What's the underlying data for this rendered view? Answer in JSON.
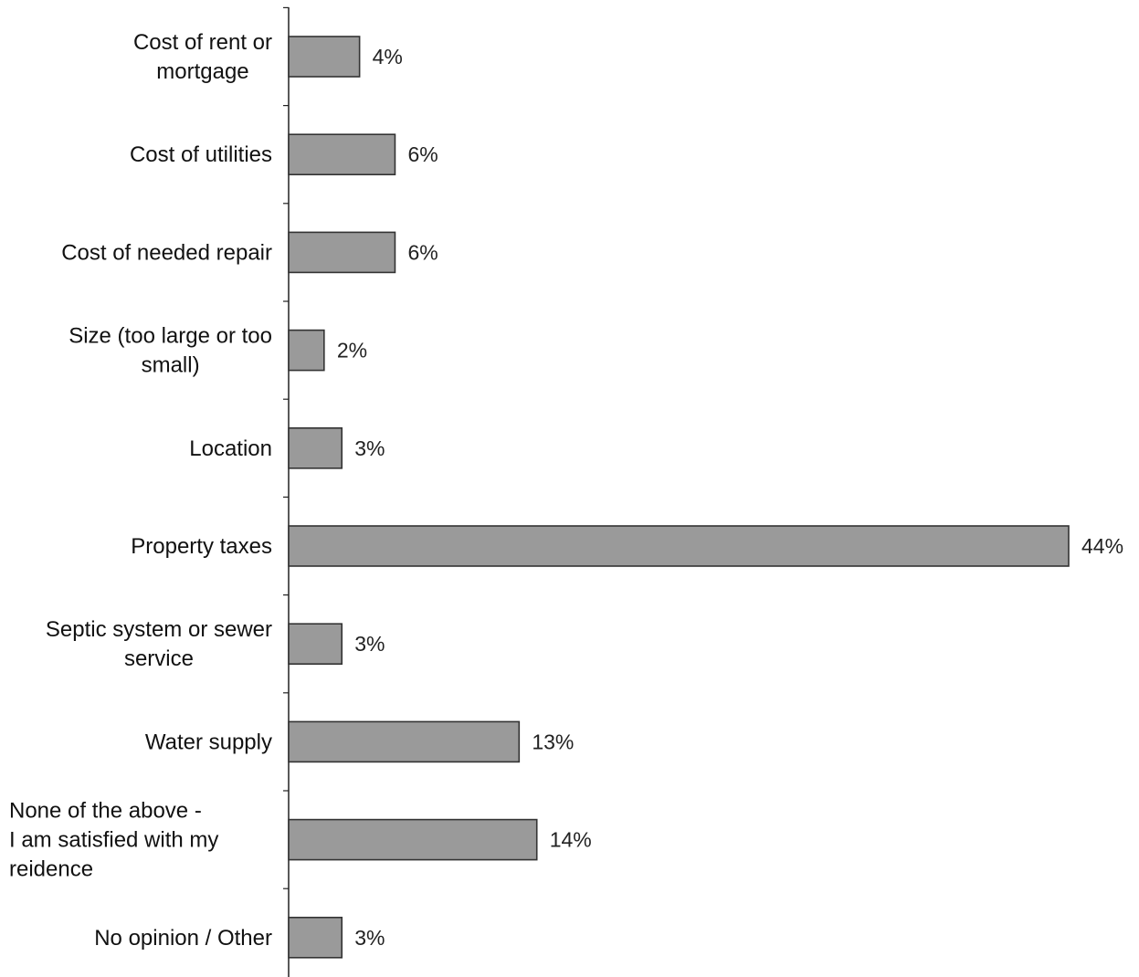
{
  "chart_data": {
    "type": "bar",
    "orientation": "horizontal",
    "categories": [
      [
        "Cost of rent or",
        "mortgage"
      ],
      [
        "Cost of utilities"
      ],
      [
        "Cost of needed repair"
      ],
      [
        "Size (too large or too",
        "small)"
      ],
      [
        "Location"
      ],
      [
        "Property taxes"
      ],
      [
        "Septic system or sewer",
        "service"
      ],
      [
        "Water supply"
      ],
      [
        "None of the above -",
        "I am satisfied with my",
        "reidence"
      ],
      [
        "No opinion / Other"
      ]
    ],
    "values": [
      4,
      6,
      6,
      2,
      3,
      44,
      3,
      13,
      14,
      3
    ],
    "value_labels": [
      "4%",
      "6%",
      "6%",
      "2%",
      "3%",
      "44%",
      "3%",
      "13%",
      "14%",
      "3%"
    ],
    "xlim": [
      0,
      44
    ],
    "colors": {
      "bar": "#9a9a9a",
      "bar_stroke": "#333333",
      "axis": "#222222"
    }
  }
}
